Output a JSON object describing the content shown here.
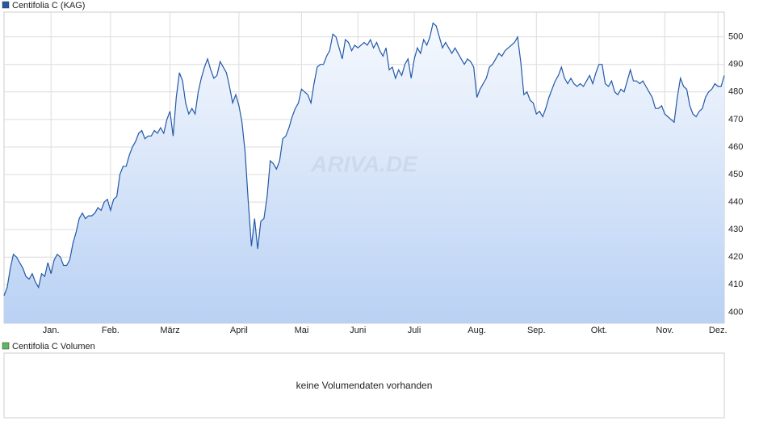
{
  "chart_data": {
    "type": "area",
    "legend": "Centifolia C (KAG)",
    "color": "#2358a8",
    "watermark": "ARIVA.DE",
    "values": [
      406,
      409,
      416,
      421,
      420,
      418,
      416,
      413,
      412,
      414,
      411,
      409,
      414,
      413,
      418,
      414,
      419,
      421,
      420,
      417,
      417,
      419,
      425,
      429,
      434,
      436,
      434,
      435,
      435,
      436,
      438,
      437,
      440,
      441,
      437,
      441,
      442,
      450,
      453,
      453,
      457,
      460,
      462,
      465,
      466,
      463,
      464,
      464,
      466,
      465,
      467,
      465,
      470,
      473,
      464,
      478,
      487,
      484,
      476,
      472,
      474,
      472,
      480,
      485,
      489,
      492,
      488,
      485,
      486,
      491,
      489,
      487,
      482,
      476,
      479,
      475,
      469,
      458,
      440,
      424,
      434,
      423,
      433,
      434,
      442,
      455,
      454,
      452,
      455,
      463,
      464,
      467,
      471,
      474,
      476,
      481,
      480,
      479,
      476,
      483,
      489,
      490,
      490,
      493,
      495,
      501,
      500,
      496,
      492,
      499,
      498,
      495,
      497,
      496,
      497,
      498,
      497,
      499,
      496,
      498,
      495,
      493,
      496,
      488,
      489,
      485,
      488,
      486,
      490,
      492,
      485,
      492,
      496,
      494,
      499,
      497,
      500,
      505,
      504,
      500,
      496,
      498,
      496,
      494,
      496,
      494,
      492,
      490,
      492,
      491,
      489,
      478,
      481,
      483,
      485,
      489,
      490,
      492,
      494,
      493,
      495,
      496,
      497,
      498,
      500,
      491,
      479,
      480,
      477,
      476,
      472,
      473,
      471,
      474,
      478,
      481,
      484,
      486,
      489,
      485,
      483,
      485,
      483,
      482,
      483,
      482,
      484,
      486,
      483,
      487,
      490,
      490,
      483,
      482,
      484,
      480,
      479,
      481,
      480,
      484,
      488,
      484,
      484,
      483,
      484,
      482,
      480,
      478,
      474,
      474,
      475,
      472,
      471,
      470,
      469,
      478,
      485,
      482,
      481,
      475,
      472,
      471,
      473,
      474,
      478,
      480,
      481,
      483,
      482,
      482,
      486
    ],
    "xlim": [
      0,
      230
    ],
    "xticks": [
      {
        "value": 15,
        "label": "Jan."
      },
      {
        "value": 34,
        "label": "Feb."
      },
      {
        "value": 53,
        "label": "März"
      },
      {
        "value": 75,
        "label": "April"
      },
      {
        "value": 95,
        "label": "Mai"
      },
      {
        "value": 113,
        "label": "Juni"
      },
      {
        "value": 131,
        "label": "Juli"
      },
      {
        "value": 151,
        "label": "Aug."
      },
      {
        "value": 170,
        "label": "Sep."
      },
      {
        "value": 190,
        "label": "Okt."
      },
      {
        "value": 211,
        "label": "Nov."
      },
      {
        "value": 228,
        "label": "Dez."
      }
    ],
    "ylim": [
      396,
      509
    ],
    "yticks": [
      400,
      410,
      420,
      430,
      440,
      450,
      460,
      470,
      480,
      490,
      500
    ],
    "grid": true
  },
  "volume_panel": {
    "legend": "Centifolia C Volumen",
    "color": "#5cb85c",
    "message": "keine Volumendaten vorhanden"
  }
}
